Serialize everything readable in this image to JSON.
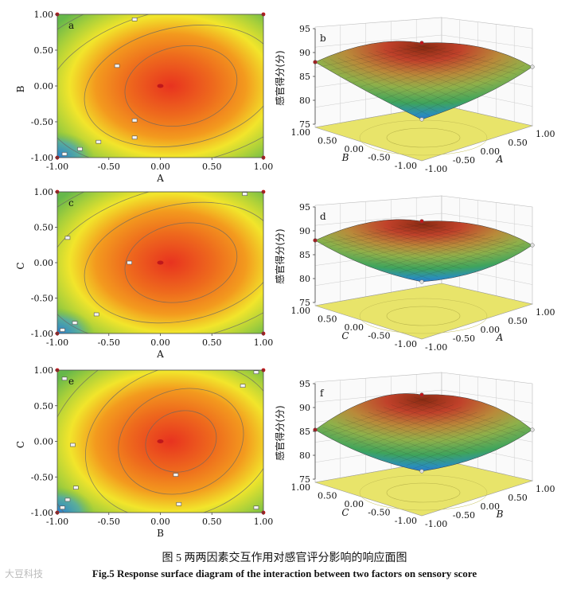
{
  "caption": {
    "zh": "图 5   两两因素交互作用对感官评分影响的响应面图",
    "en": "Fig.5   Response surface diagram of the interaction between two factors on sensory score"
  },
  "watermark": "大豆科技",
  "colors": {
    "red": "#e8331f",
    "orange": "#f39a1e",
    "yellow": "#f2e52b",
    "green": "#66b84a",
    "blue": "#2d7fd1"
  },
  "chart_data": [
    {
      "type": "heatmap",
      "panel": "a",
      "xlabel": "A",
      "ylabel": "B",
      "xlim": [
        -1,
        1
      ],
      "ylim": [
        -1,
        1
      ],
      "xticks": [
        "-1.00",
        "-0.50",
        "0.00",
        "0.50",
        "1.00"
      ],
      "yticks": [
        "-1.00",
        "-0.50",
        "0.00",
        "0.50",
        "1.00"
      ],
      "center": [
        0,
        0
      ],
      "design_points": [
        [
          -0.25,
          0.93
        ],
        [
          -0.42,
          0.28
        ],
        [
          -0.25,
          -0.48
        ],
        [
          -0.25,
          -0.72
        ],
        [
          -0.6,
          -0.78
        ],
        [
          -0.78,
          -0.88
        ],
        [
          -0.93,
          -0.95
        ]
      ],
      "contour_levels": [
        75,
        80,
        85,
        90
      ],
      "surface_max": 90.5
    },
    {
      "type": "surface3d",
      "panel": "b",
      "xlabel": "A",
      "ylabel": "B",
      "zlabel": "感官得分(分)",
      "zlim": [
        75,
        95
      ],
      "zticks": [
        "75",
        "80",
        "85",
        "90",
        "95"
      ],
      "xticks": [
        "-1.00",
        "-0.50",
        "0.00",
        "0.50",
        "1.00"
      ],
      "yticks": [
        "-1.00",
        "-0.50",
        "0.00",
        "0.50",
        "1.00"
      ]
    },
    {
      "type": "heatmap",
      "panel": "c",
      "xlabel": "A",
      "ylabel": "C",
      "xlim": [
        -1,
        1
      ],
      "ylim": [
        -1,
        1
      ],
      "xticks": [
        "-1.00",
        "-0.50",
        "0.00",
        "0.50",
        "1.00"
      ],
      "yticks": [
        "-1.00",
        "-0.50",
        "0.00",
        "0.50",
        "1.00"
      ],
      "center": [
        0,
        0
      ],
      "design_points": [
        [
          0.82,
          0.97
        ],
        [
          -0.9,
          0.35
        ],
        [
          -0.3,
          0.0
        ],
        [
          -0.62,
          -0.73
        ],
        [
          -0.83,
          -0.85
        ],
        [
          -0.95,
          -0.95
        ]
      ],
      "contour_levels": [
        80,
        85,
        90
      ],
      "surface_max": 91.0
    },
    {
      "type": "surface3d",
      "panel": "d",
      "xlabel": "A",
      "ylabel": "C",
      "zlabel": "感官得分(分)",
      "zlim": [
        75,
        95
      ],
      "zticks": [
        "75",
        "80",
        "85",
        "90",
        "95"
      ],
      "xticks": [
        "-1.00",
        "-0.50",
        "0.00",
        "0.50",
        "1.00"
      ],
      "yticks": [
        "-1.00",
        "-0.50",
        "0.00",
        "0.50",
        "1.00"
      ]
    },
    {
      "type": "heatmap",
      "panel": "e",
      "xlabel": "B",
      "ylabel": "C",
      "xlim": [
        -1,
        1
      ],
      "ylim": [
        -1,
        1
      ],
      "xticks": [
        "-1.00",
        "-0.50",
        "0.00",
        "0.50",
        "1.00"
      ],
      "yticks": [
        "-1.00",
        "-0.50",
        "0.00",
        "0.50",
        "1.00"
      ],
      "center": [
        0,
        0
      ],
      "design_points": [
        [
          -0.93,
          0.88
        ],
        [
          0.93,
          0.97
        ],
        [
          0.8,
          0.78
        ],
        [
          -0.85,
          -0.05
        ],
        [
          -0.82,
          -0.65
        ],
        [
          0.15,
          -0.47
        ],
        [
          0.18,
          -0.88
        ],
        [
          -0.9,
          -0.82
        ],
        [
          0.93,
          -0.93
        ],
        [
          -0.95,
          -0.93
        ]
      ],
      "contour_levels": [
        80,
        85,
        90
      ],
      "surface_max": 90.8
    },
    {
      "type": "surface3d",
      "panel": "f",
      "xlabel": "B",
      "ylabel": "C",
      "zlabel": "感官得分(分)",
      "zlim": [
        75,
        95
      ],
      "zticks": [
        "75",
        "80",
        "85",
        "90",
        "95"
      ],
      "xticks": [
        "-1.00",
        "-0.50",
        "0.00",
        "0.50",
        "1.00"
      ],
      "yticks": [
        "-1.00",
        "-0.50",
        "0.00",
        "0.50",
        "1.00"
      ]
    }
  ]
}
